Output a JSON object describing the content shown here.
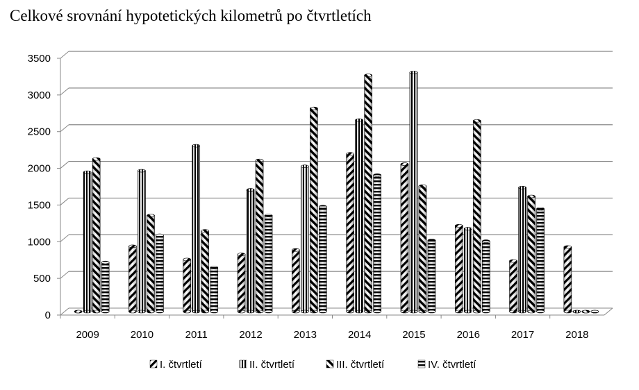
{
  "chart_data": {
    "type": "bar",
    "title": "Celkové srovnání hypotetických kilometrů po čtvrtletích",
    "categories": [
      "2009",
      "2010",
      "2011",
      "2012",
      "2013",
      "2014",
      "2015",
      "2016",
      "2017",
      "2018"
    ],
    "series": [
      {
        "name": "I. čtvrtletí",
        "values": [
          0,
          890,
          710,
          780,
          840,
          2150,
          2010,
          1170,
          690,
          880
        ]
      },
      {
        "name": "II. čtvrtletí",
        "values": [
          1900,
          1920,
          2260,
          1660,
          1980,
          2610,
          3260,
          1130,
          1690,
          0
        ]
      },
      {
        "name": "III. čtvrtletí",
        "values": [
          2080,
          1310,
          1100,
          2060,
          2770,
          3220,
          1710,
          2600,
          1570,
          0
        ]
      },
      {
        "name": "IV. čtvrtletí",
        "values": [
          670,
          1040,
          600,
          1310,
          1430,
          1860,
          970,
          960,
          1400,
          0
        ]
      }
    ],
    "y_ticks": [
      "0",
      "500",
      "1000",
      "1500",
      "2000",
      "2500",
      "3000",
      "3500"
    ],
    "ylim": [
      0,
      3500
    ],
    "grid": true,
    "legend_position": "bottom",
    "style": "3d-cylinder-bars-with-hatch-patterns"
  }
}
